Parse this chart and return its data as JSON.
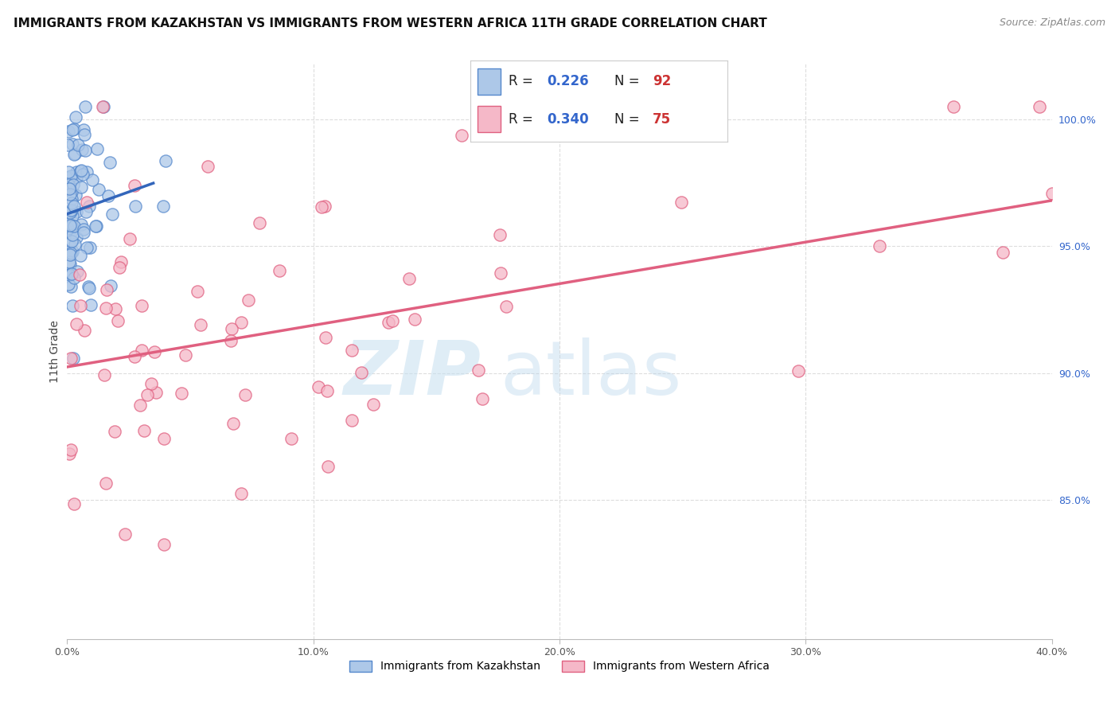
{
  "title": "IMMIGRANTS FROM KAZAKHSTAN VS IMMIGRANTS FROM WESTERN AFRICA 11TH GRADE CORRELATION CHART",
  "source": "Source: ZipAtlas.com",
  "ylabel": "11th Grade",
  "ylabel_right_ticks": [
    "100.0%",
    "95.0%",
    "90.0%",
    "85.0%"
  ],
  "ylabel_right_vals": [
    1.0,
    0.95,
    0.9,
    0.85
  ],
  "xtick_vals": [
    0.0,
    0.1,
    0.2,
    0.3,
    0.4
  ],
  "xtick_labels": [
    "0.0%",
    "10.0%",
    "20.0%",
    "30.0%",
    "40.0%"
  ],
  "xmin": 0.0,
  "xmax": 0.4,
  "ymin": 0.795,
  "ymax": 1.022,
  "legend_r1": "0.226",
  "legend_n1": "92",
  "legend_r2": "0.340",
  "legend_n2": "75",
  "color_kaz_fill": "#adc8e8",
  "color_kaz_edge": "#5588cc",
  "color_waf_fill": "#f5b8c8",
  "color_waf_edge": "#e06080",
  "color_kaz_line": "#3366bb",
  "color_waf_line": "#e06080",
  "color_r_text": "#3366cc",
  "color_n_text": "#cc3333",
  "watermark_zip_color": "#c5dff0",
  "watermark_atlas_color": "#b8d5eb",
  "background_color": "#ffffff",
  "grid_color": "#dddddd",
  "title_fontsize": 11,
  "axis_label_fontsize": 10,
  "tick_fontsize": 9,
  "legend_fontsize": 12
}
